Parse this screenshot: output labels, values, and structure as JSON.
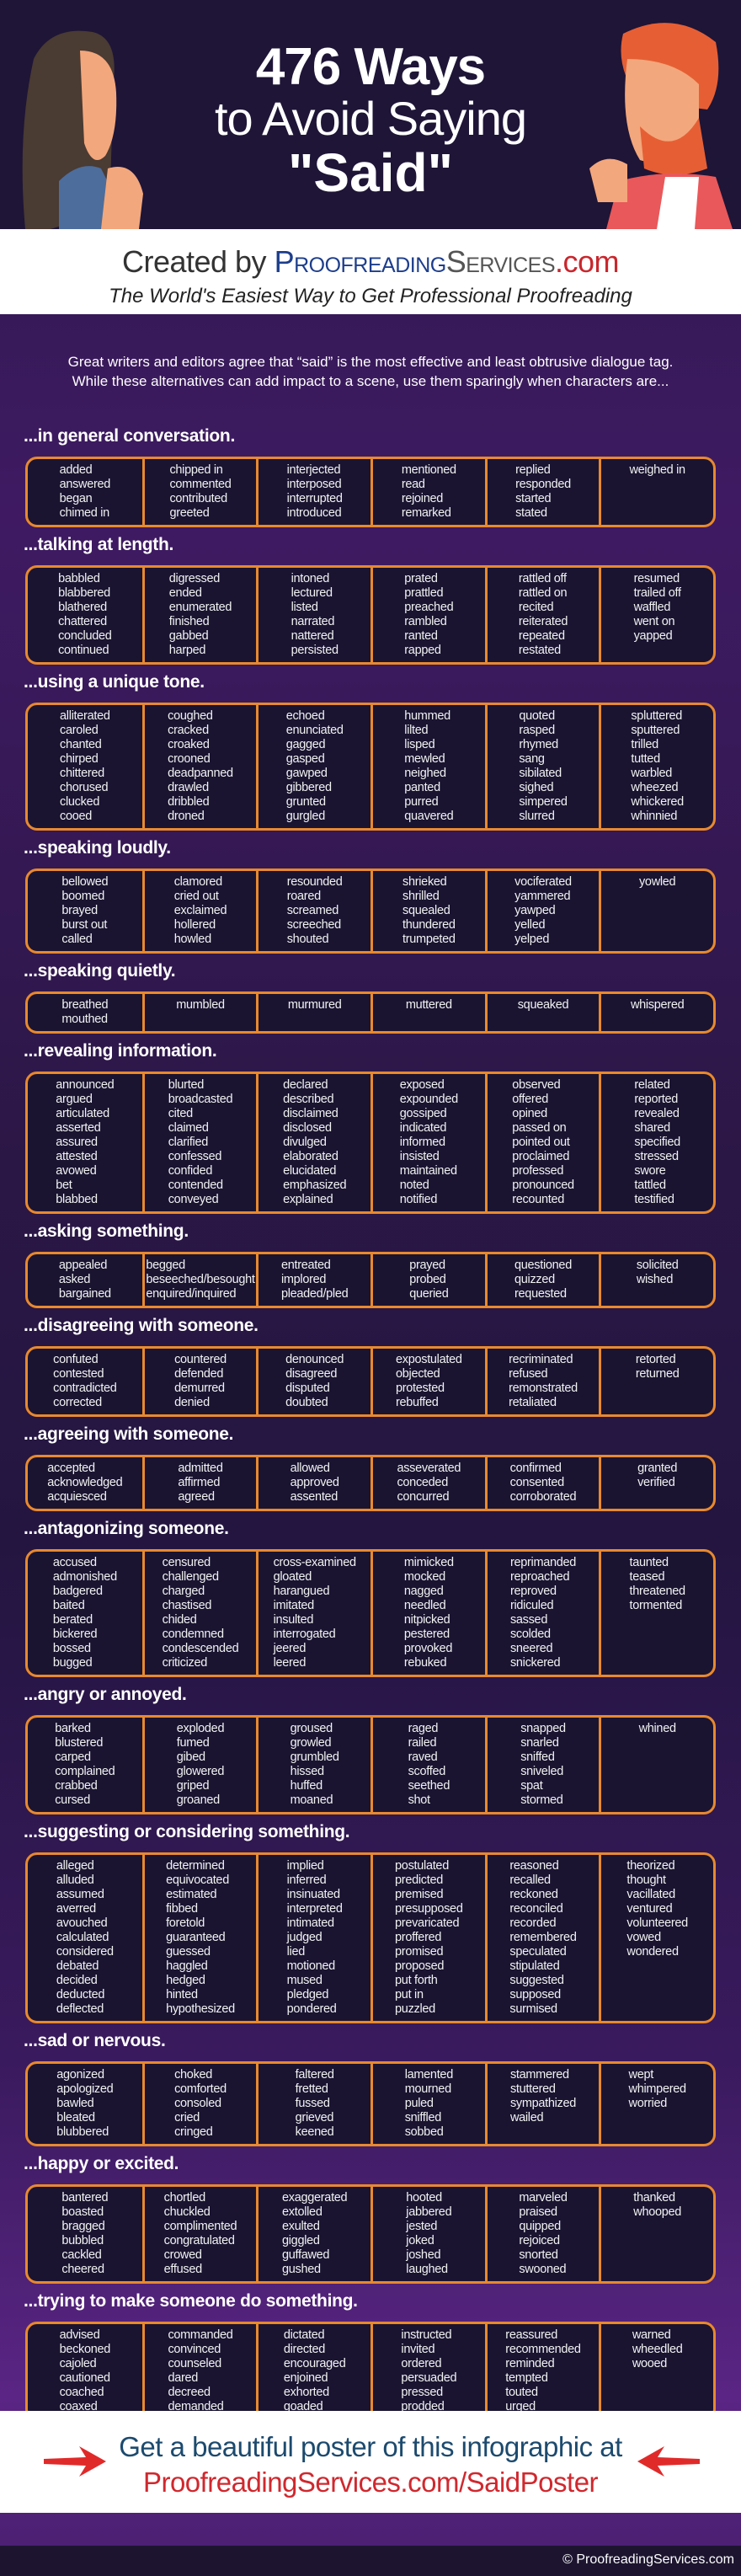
{
  "header": {
    "title_line1": "476 Ways",
    "title_line2": "to Avoid Saying",
    "title_line3": "\"Said\"",
    "created_by": "Created by ",
    "brand_proofreading": "Proofreading",
    "brand_services": "Services",
    "brand_com": ".com",
    "tagline": "The World's Easiest Way to Get Professional Proofreading"
  },
  "intro": {
    "line1": "Great writers and editors agree that “said” is the most effective and least obtrusive dialogue tag.",
    "line2": "While these alternatives can add impact to a scene, use them sparingly when characters are..."
  },
  "colors": {
    "accent_border": "#e8892e",
    "box_bg": "#1a1431",
    "brand_blue": "#1d3e8c",
    "brand_red": "#c8272d",
    "cta_blue": "#1c4a6e"
  },
  "sections": [
    {
      "heading": "...in general conversation.",
      "columns": [
        [
          "added",
          "answered",
          "began",
          "chimed in"
        ],
        [
          "chipped in",
          "commented",
          "contributed",
          "greeted"
        ],
        [
          "interjected",
          "interposed",
          "interrupted",
          "introduced"
        ],
        [
          "mentioned",
          "read",
          "rejoined",
          "remarked"
        ],
        [
          "replied",
          "responded",
          "started",
          "stated"
        ],
        [
          "weighed in"
        ]
      ]
    },
    {
      "heading": "...talking at length.",
      "columns": [
        [
          "babbled",
          "blabbered",
          "blathered",
          "chattered",
          "concluded",
          "continued"
        ],
        [
          "digressed",
          "ended",
          "enumerated",
          "finished",
          "gabbed",
          "harped"
        ],
        [
          "intoned",
          "lectured",
          "listed",
          "narrated",
          "nattered",
          "persisted"
        ],
        [
          "prated",
          "prattled",
          "preached",
          "rambled",
          "ranted",
          "rapped"
        ],
        [
          "rattled off",
          "rattled on",
          "recited",
          "reiterated",
          "repeated",
          "restated"
        ],
        [
          "resumed",
          "trailed off",
          "waffled",
          "went on",
          "yapped"
        ]
      ]
    },
    {
      "heading": "...using a unique tone.",
      "columns": [
        [
          "alliterated",
          "caroled",
          "chanted",
          "chirped",
          "chittered",
          "chorused",
          "clucked",
          "cooed"
        ],
        [
          "coughed",
          "cracked",
          "croaked",
          "crooned",
          "deadpanned",
          "drawled",
          "dribbled",
          "droned"
        ],
        [
          "echoed",
          "enunciated",
          "gagged",
          "gasped",
          "gawped",
          "gibbered",
          "grunted",
          "gurgled"
        ],
        [
          "hummed",
          "lilted",
          "lisped",
          "mewled",
          "neighed",
          "panted",
          "purred",
          "quavered"
        ],
        [
          "quoted",
          "rasped",
          "rhymed",
          "sang",
          "sibilated",
          "sighed",
          "simpered",
          "slurred"
        ],
        [
          "spluttered",
          "sputtered",
          "trilled",
          "tutted",
          "warbled",
          "wheezed",
          "whickered",
          "whinnied"
        ]
      ]
    },
    {
      "heading": "...speaking loudly.",
      "columns": [
        [
          "bellowed",
          "boomed",
          "brayed",
          "burst out",
          "called"
        ],
        [
          "clamored",
          "cried out",
          "exclaimed",
          "hollered",
          "howled"
        ],
        [
          "resounded",
          "roared",
          "screamed",
          "screeched",
          "shouted"
        ],
        [
          "shrieked",
          "shrilled",
          "squealed",
          "thundered",
          "trumpeted"
        ],
        [
          "vociferated",
          "yammered",
          "yawped",
          "yelled",
          "yelped"
        ],
        [
          "yowled"
        ]
      ]
    },
    {
      "heading": "...speaking quietly.",
      "columns": [
        [
          "breathed",
          "mouthed"
        ],
        [
          "mumbled"
        ],
        [
          "murmured"
        ],
        [
          "muttered"
        ],
        [
          "squeaked"
        ],
        [
          "whispered"
        ]
      ]
    },
    {
      "heading": "...revealing information.",
      "columns": [
        [
          "announced",
          "argued",
          "articulated",
          "asserted",
          "assured",
          "attested",
          "avowed",
          "bet",
          "blabbed"
        ],
        [
          "blurted",
          "broadcasted",
          "cited",
          "claimed",
          "clarified",
          "confessed",
          "confided",
          "contended",
          "conveyed"
        ],
        [
          "declared",
          "described",
          "disclaimed",
          "disclosed",
          "divulged",
          "elaborated",
          "elucidated",
          "emphasized",
          "explained"
        ],
        [
          "exposed",
          "expounded",
          "gossiped",
          "indicated",
          "informed",
          "insisted",
          "maintained",
          "noted",
          "notified"
        ],
        [
          "observed",
          "offered",
          "opined",
          "passed on",
          "pointed out",
          "proclaimed",
          "professed",
          "pronounced",
          "recounted"
        ],
        [
          "related",
          "reported",
          "revealed",
          "shared",
          "specified",
          "stressed",
          "swore",
          "tattled",
          "testified"
        ]
      ]
    },
    {
      "heading": "...asking something.",
      "columns": [
        [
          "appealed",
          "asked",
          "bargained"
        ],
        [
          "begged",
          "beseeched/besought",
          "enquired/inquired"
        ],
        [
          "entreated",
          "implored",
          "pleaded/pled"
        ],
        [
          "prayed",
          "probed",
          "queried"
        ],
        [
          "questioned",
          "quizzed",
          "requested"
        ],
        [
          "solicited",
          "wished"
        ]
      ]
    },
    {
      "heading": "...disagreeing with someone.",
      "columns": [
        [
          "confuted",
          "contested",
          "contradicted",
          "corrected"
        ],
        [
          "countered",
          "defended",
          "demurred",
          "denied"
        ],
        [
          "denounced",
          "disagreed",
          "disputed",
          "doubted"
        ],
        [
          "expostulated",
          "objected",
          "protested",
          "rebuffed"
        ],
        [
          "recriminated",
          "refused",
          "remonstrated",
          "retaliated"
        ],
        [
          "retorted",
          "returned"
        ]
      ]
    },
    {
      "heading": "...agreeing with someone.",
      "columns": [
        [
          "accepted",
          "acknowledged",
          "acquiesced"
        ],
        [
          "admitted",
          "affirmed",
          "agreed"
        ],
        [
          "allowed",
          "approved",
          "assented"
        ],
        [
          "asseverated",
          "conceded",
          "concurred"
        ],
        [
          "confirmed",
          "consented",
          "corroborated"
        ],
        [
          "granted",
          "verified"
        ]
      ]
    },
    {
      "heading": "...antagonizing someone.",
      "columns": [
        [
          "accused",
          "admonished",
          "badgered",
          "baited",
          "berated",
          "bickered",
          "bossed",
          "bugged"
        ],
        [
          "censured",
          "challenged",
          "charged",
          "chastised",
          "chided",
          "condemned",
          "condescended",
          "criticized"
        ],
        [
          "cross-examined",
          "gloated",
          "harangued",
          "imitated",
          "insulted",
          "interrogated",
          "jeered",
          "leered"
        ],
        [
          "mimicked",
          "mocked",
          "nagged",
          "needled",
          "nitpicked",
          "pestered",
          "provoked",
          "rebuked"
        ],
        [
          "reprimanded",
          "reproached",
          "reproved",
          "ridiculed",
          "sassed",
          "scolded",
          "sneered",
          "snickered"
        ],
        [
          "taunted",
          "teased",
          "threatened",
          "tormented"
        ]
      ]
    },
    {
      "heading": "...angry or annoyed.",
      "columns": [
        [
          "barked",
          "blustered",
          "carped",
          "complained",
          "crabbed",
          "cursed"
        ],
        [
          "exploded",
          "fumed",
          "gibed",
          "glowered",
          "griped",
          "groaned"
        ],
        [
          "groused",
          "growled",
          "grumbled",
          "hissed",
          "huffed",
          "moaned"
        ],
        [
          "raged",
          "railed",
          "raved",
          "scoffed",
          "seethed",
          "shot"
        ],
        [
          "snapped",
          "snarled",
          "sniffed",
          "sniveled",
          "spat",
          "stormed"
        ],
        [
          "whined"
        ]
      ]
    },
    {
      "heading": "...suggesting or considering something.",
      "columns": [
        [
          "alleged",
          "alluded",
          "assumed",
          "averred",
          "avouched",
          "calculated",
          "considered",
          "debated",
          "decided",
          "deducted",
          "deflected"
        ],
        [
          "determined",
          "equivocated",
          "estimated",
          "fibbed",
          "foretold",
          "guaranteed",
          "guessed",
          "haggled",
          "hedged",
          "hinted",
          "hypothesized"
        ],
        [
          "implied",
          "inferred",
          "insinuated",
          "interpreted",
          "intimated",
          "judged",
          "lied",
          "motioned",
          "mused",
          "pledged",
          "pondered"
        ],
        [
          "postulated",
          "predicted",
          "premised",
          "presupposed",
          "prevaricated",
          "proffered",
          "promised",
          "proposed",
          "put forth",
          "put in",
          "puzzled"
        ],
        [
          "reasoned",
          "recalled",
          "reckoned",
          "reconciled",
          "recorded",
          "remembered",
          "speculated",
          "stipulated",
          "suggested",
          "supposed",
          "surmised"
        ],
        [
          "theorized",
          "thought",
          "vacillated",
          "ventured",
          "volunteered",
          "vowed",
          "wondered"
        ]
      ]
    },
    {
      "heading": "...sad or nervous.",
      "columns": [
        [
          "agonized",
          "apologized",
          "bawled",
          "bleated",
          "blubbered"
        ],
        [
          "choked",
          "comforted",
          "consoled",
          "cried",
          "cringed"
        ],
        [
          "faltered",
          "fretted",
          "fussed",
          "grieved",
          "keened"
        ],
        [
          "lamented",
          "mourned",
          "puled",
          "sniffled",
          "sobbed"
        ],
        [
          "stammered",
          "stuttered",
          "sympathized",
          "wailed"
        ],
        [
          "wept",
          "whimpered",
          "worried"
        ]
      ]
    },
    {
      "heading": "...happy or excited.",
      "columns": [
        [
          "bantered",
          "boasted",
          "bragged",
          "bubbled",
          "cackled",
          "cheered"
        ],
        [
          "chortled",
          "chuckled",
          "complimented",
          "congratulated",
          "crowed",
          "effused"
        ],
        [
          "exaggerated",
          "extolled",
          "exulted",
          "giggled",
          "guffawed",
          "gushed"
        ],
        [
          "hooted",
          "jabbered",
          "jested",
          "joked",
          "joshed",
          "laughed"
        ],
        [
          "marveled",
          "praised",
          "quipped",
          "rejoiced",
          "snorted",
          "swooned"
        ],
        [
          "thanked",
          "whooped"
        ]
      ]
    },
    {
      "heading": "...trying to make someone do something.",
      "columns": [
        [
          "advised",
          "beckoned",
          "cajoled",
          "cautioned",
          "coached",
          "coaxed"
        ],
        [
          "commanded",
          "convinced",
          "counseled",
          "dared",
          "decreed",
          "demanded"
        ],
        [
          "dictated",
          "directed",
          "encouraged",
          "enjoined",
          "exhorted",
          "goaded"
        ],
        [
          "instructed",
          "invited",
          "ordered",
          "persuaded",
          "pressed",
          "prodded"
        ],
        [
          "reassured",
          "recommended",
          "reminded",
          "tempted",
          "touted",
          "urged"
        ],
        [
          "warned",
          "wheedled",
          "wooed"
        ]
      ]
    }
  ],
  "cta": {
    "line1": "Get a beautiful poster of this infographic at",
    "line2": "ProofreadingServices.com/SaidPoster",
    "arrow_icon": "red-arrow"
  },
  "footer": {
    "copyright": "© ProofreadingServices.com"
  }
}
